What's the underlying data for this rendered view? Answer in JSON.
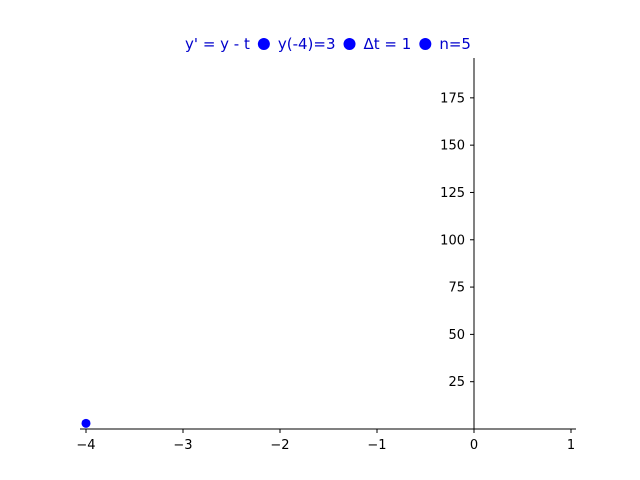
{
  "chart_data": {
    "type": "scatter",
    "title_parts": [
      "y' = y - t",
      "y(-4)=3",
      "Δt = 1",
      "n=5"
    ],
    "title_color": "#0000cc",
    "marker_color": "#0000ff",
    "xlabel": "",
    "ylabel": "",
    "xlim": [
      -4.0,
      1.0
    ],
    "ylim": [
      0,
      195
    ],
    "x_ticks": [
      -4,
      -3,
      -2,
      -1,
      0,
      1
    ],
    "x_tick_labels": [
      "−4",
      "−3",
      "−2",
      "−1",
      "0",
      "1"
    ],
    "y_ticks": [
      25,
      50,
      75,
      100,
      125,
      150,
      175
    ],
    "y_tick_labels": [
      "25",
      "50",
      "75",
      "100",
      "125",
      "150",
      "175"
    ],
    "grid": false,
    "legend": "none",
    "series": [
      {
        "x": [
          -4
        ],
        "y": [
          3
        ]
      }
    ]
  }
}
